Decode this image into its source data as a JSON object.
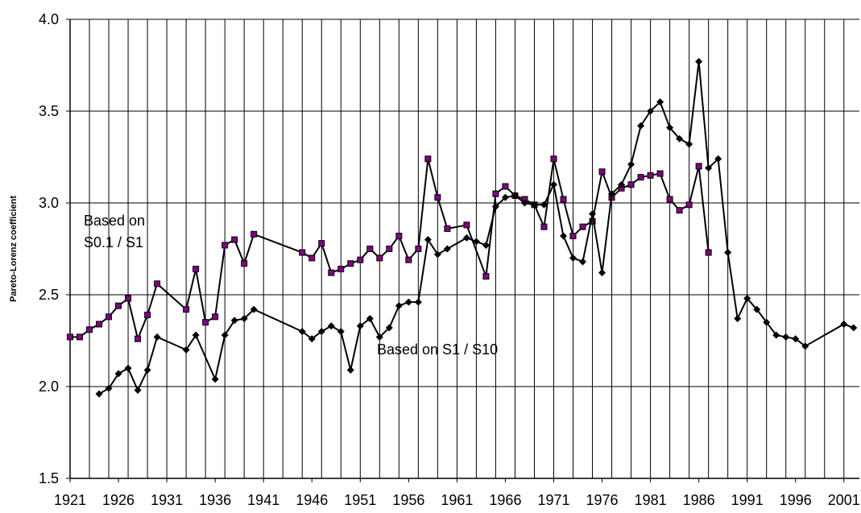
{
  "chart_data": {
    "type": "line",
    "ylabel": "Pareto-Lorenz coefficient",
    "annotations": [
      [
        "Based on",
        "S0.1 / S1"
      ],
      [
        "Based on S1 / S10"
      ]
    ],
    "xlim": [
      1921,
      2002.6
    ],
    "xticks": [
      1921,
      1926,
      1931,
      1936,
      1941,
      1946,
      1951,
      1956,
      1961,
      1966,
      1971,
      1976,
      1981,
      1986,
      1991,
      1996,
      2001
    ],
    "x_gridlines": [
      1921,
      1923,
      1925,
      1927,
      1929,
      1931,
      1933,
      1935,
      1937,
      1939,
      1941,
      1943,
      1945,
      1947,
      1949,
      1951,
      1953,
      1955,
      1957,
      1959,
      1961,
      1963,
      1965,
      1967,
      1969,
      1971,
      1973,
      1975,
      1977,
      1979,
      1981,
      1983,
      1985,
      1987,
      1989,
      1991,
      1993,
      1995,
      1997,
      1999,
      2001
    ],
    "ylim": [
      1.5,
      4.0
    ],
    "yticks": [
      {
        "value": 1.5,
        "label": "1.5"
      },
      {
        "value": 2,
        "label": "2.0"
      },
      2.5,
      {
        "value": 3,
        "label": "3.0"
      },
      3.5,
      {
        "value": 4,
        "label": "4.0"
      }
    ],
    "grid": true,
    "series": [
      {
        "marker": "square",
        "color": "#800080",
        "x": [
          1921,
          1922,
          1923,
          1924,
          1925,
          1926,
          1927,
          1928,
          1929,
          1930,
          1933,
          1934,
          1935,
          1936,
          1937,
          1938,
          1939,
          1940,
          1945,
          1946,
          1947,
          1948,
          1949,
          1950,
          1951,
          1952,
          1953,
          1954,
          1955,
          1956,
          1957,
          1958,
          1959,
          1960,
          1962,
          1964,
          1965,
          1966,
          1967,
          1968,
          1969,
          1970,
          1971,
          1972,
          1973,
          1974,
          1975,
          1976,
          1977,
          1978,
          1979,
          1980,
          1981,
          1982,
          1983,
          1984,
          1985,
          1986,
          1987
        ],
        "values": [
          2.27,
          2.27,
          2.31,
          2.34,
          2.38,
          2.44,
          2.48,
          2.26,
          2.39,
          2.56,
          2.42,
          2.64,
          2.35,
          2.38,
          2.77,
          2.8,
          2.67,
          2.83,
          2.73,
          2.7,
          2.78,
          2.62,
          2.64,
          2.67,
          2.69,
          2.75,
          2.7,
          2.75,
          2.82,
          2.69,
          2.75,
          3.24,
          3.03,
          2.86,
          2.88,
          2.6,
          3.05,
          3.09,
          3.04,
          3.02,
          2.99,
          2.87,
          3.24,
          3.02,
          2.82,
          2.87,
          2.9,
          3.17,
          3.03,
          3.08,
          3.1,
          3.14,
          3.15,
          3.16,
          3.02,
          2.96,
          2.99,
          3.2,
          2.73
        ]
      },
      {
        "marker": "diamond",
        "color": "#000000",
        "x": [
          1924,
          1925,
          1926,
          1927,
          1928,
          1929,
          1930,
          1933,
          1934,
          1936,
          1937,
          1938,
          1939,
          1940,
          1945,
          1946,
          1947,
          1948,
          1949,
          1950,
          1951,
          1952,
          1953,
          1954,
          1955,
          1956,
          1957,
          1958,
          1959,
          1960,
          1962,
          1963,
          1964,
          1965,
          1966,
          1967,
          1968,
          1969,
          1970,
          1971,
          1972,
          1973,
          1974,
          1975,
          1976,
          1977,
          1978,
          1979,
          1980,
          1981,
          1982,
          1983,
          1984,
          1985,
          1986,
          1987,
          1988,
          1989,
          1990,
          1991,
          1992,
          1993,
          1994,
          1995,
          1996,
          1997,
          2001,
          2002
        ],
        "values": [
          1.96,
          1.99,
          2.07,
          2.1,
          1.98,
          2.09,
          2.27,
          2.2,
          2.28,
          2.04,
          2.28,
          2.36,
          2.37,
          2.42,
          2.3,
          2.26,
          2.3,
          2.33,
          2.3,
          2.09,
          2.33,
          2.37,
          2.27,
          2.32,
          2.44,
          2.46,
          2.46,
          2.8,
          2.72,
          2.75,
          2.81,
          2.79,
          2.77,
          2.98,
          3.03,
          3.04,
          3.0,
          2.99,
          2.99,
          3.1,
          2.82,
          2.7,
          2.68,
          2.94,
          2.62,
          3.05,
          3.1,
          3.21,
          3.42,
          3.5,
          3.55,
          3.41,
          3.35,
          3.32,
          3.77,
          3.19,
          3.24,
          2.73,
          2.37,
          2.48,
          2.42,
          2.35,
          2.28,
          2.27,
          2.26,
          2.22,
          2.34,
          2.32
        ]
      }
    ]
  }
}
